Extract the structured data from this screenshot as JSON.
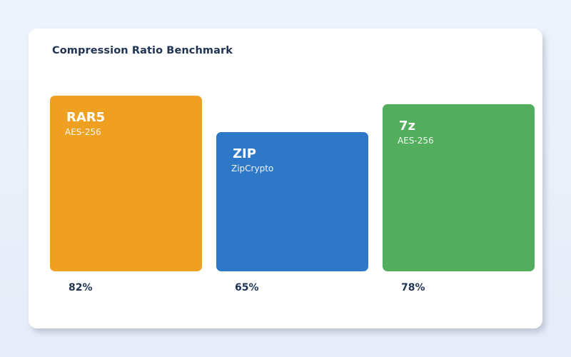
{
  "chart_data": {
    "type": "bar",
    "title": "Compression Ratio Benchmark",
    "categories": [
      "RAR5",
      "ZIP",
      "7z"
    ],
    "subtitles": [
      "AES-256",
      "ZipCrypto",
      "AES-256"
    ],
    "values": [
      82,
      65,
      78
    ],
    "value_labels": [
      "82%",
      "65%",
      "78%"
    ],
    "colors": [
      "#f0a020",
      "#2e78c8",
      "#52ad5c"
    ],
    "ylim": [
      0,
      100
    ],
    "grid": false,
    "legend": "none"
  }
}
